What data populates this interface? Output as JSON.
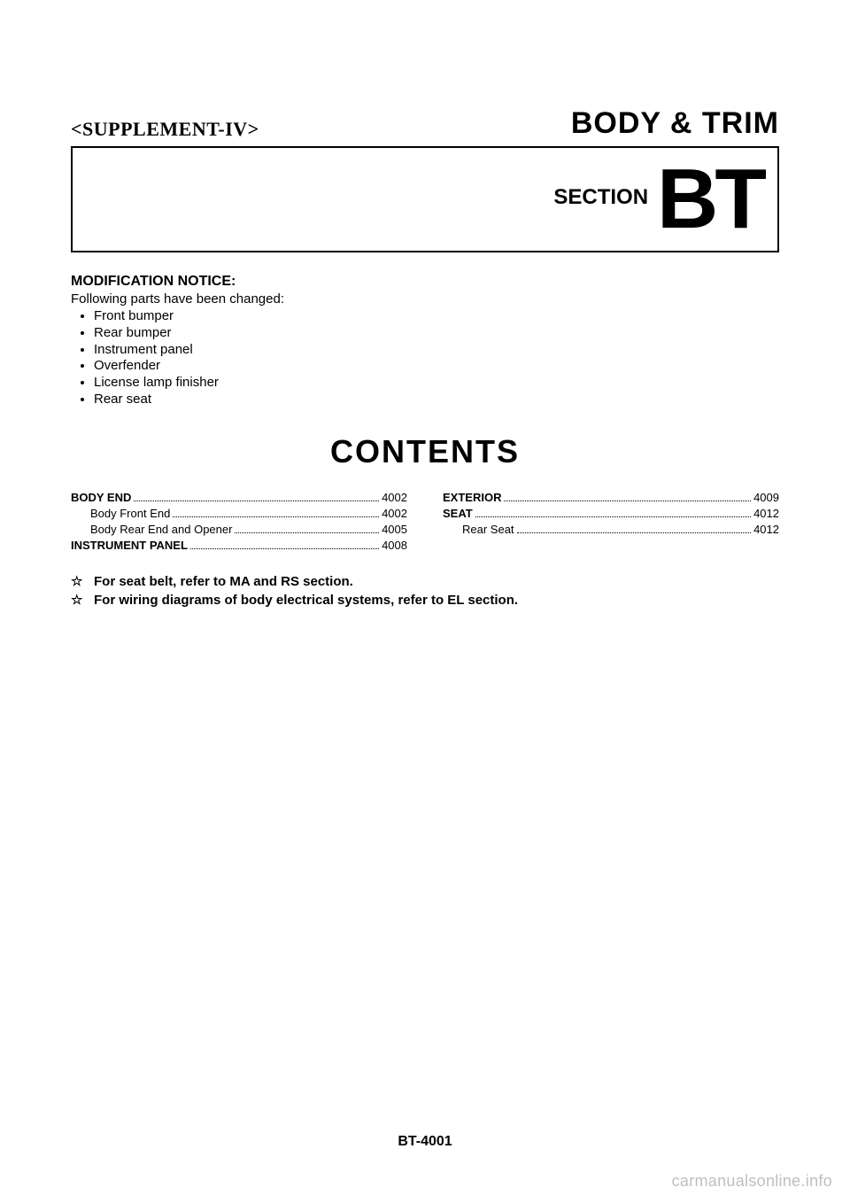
{
  "header": {
    "supplement": "<SUPPLEMENT-IV>",
    "title": "BODY & TRIM"
  },
  "section": {
    "label": "SECTION",
    "code": "BT"
  },
  "modification": {
    "heading": "MODIFICATION NOTICE:",
    "intro": "Following parts have been changed:",
    "items": [
      "Front bumper",
      "Rear bumper",
      "Instrument panel",
      "Overfender",
      "License lamp finisher",
      "Rear seat"
    ]
  },
  "contents": {
    "heading": "CONTENTS",
    "left": [
      {
        "label": "BODY END",
        "page": "4002",
        "bold": true,
        "sub": false
      },
      {
        "label": "Body Front End",
        "page": "4002",
        "bold": false,
        "sub": true
      },
      {
        "label": "Body Rear End and Opener",
        "page": "4005",
        "bold": false,
        "sub": true
      },
      {
        "label": "INSTRUMENT PANEL",
        "page": "4008",
        "bold": true,
        "sub": false
      }
    ],
    "right": [
      {
        "label": "EXTERIOR",
        "page": "4009",
        "bold": true,
        "sub": false
      },
      {
        "label": "SEAT",
        "page": "4012",
        "bold": true,
        "sub": false
      },
      {
        "label": "Rear Seat",
        "page": "4012",
        "bold": false,
        "sub": true
      }
    ]
  },
  "notes": [
    "For seat belt, refer to MA and RS section.",
    "For wiring diagrams of body electrical systems, refer to EL section."
  ],
  "star": "☆",
  "footer": "BT-4001",
  "watermark": "carmanualsonline.info",
  "colors": {
    "text": "#000000",
    "background": "#ffffff",
    "watermark": "#bfbfbf"
  },
  "fonts": {
    "title_size_pt": 26,
    "section_code_size_pt": 72,
    "contents_heading_size_pt": 27,
    "body_size_pt": 11,
    "toc_size_pt": 10
  }
}
